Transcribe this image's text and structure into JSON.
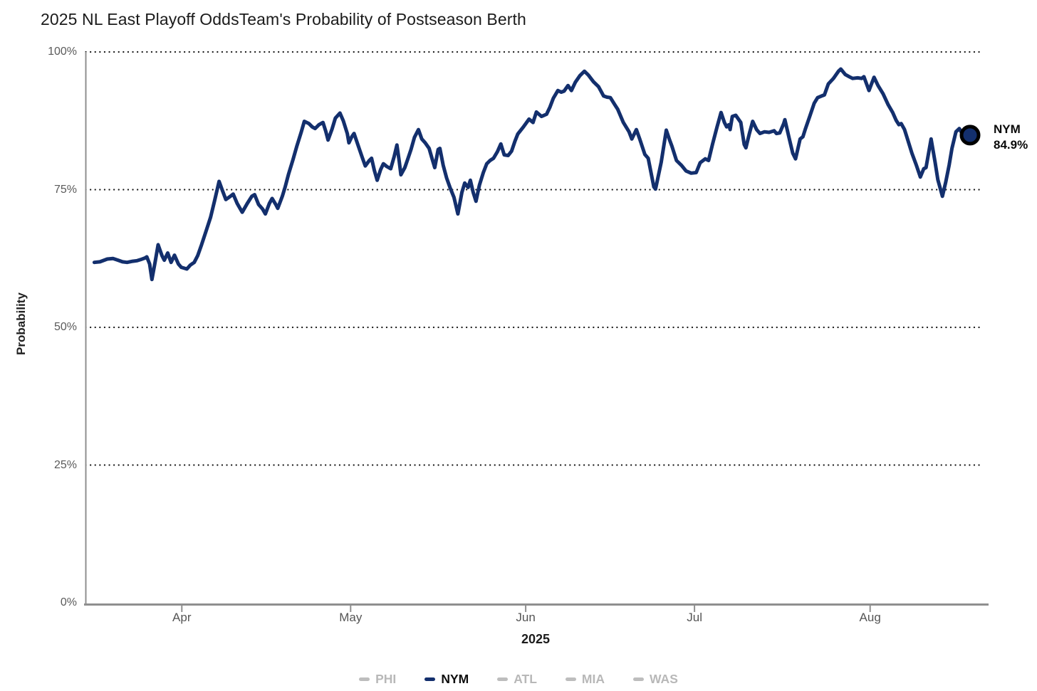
{
  "page": {
    "background": "#ffffff"
  },
  "chart_data": {
    "type": "line",
    "title": "2025 NL East Playoff Odds",
    "subtitle": "Team's Probability of Postseason Berth",
    "xlabel": "2025",
    "ylabel": "Probability",
    "x_axis": {
      "unit": "days (day 0 = mid-March 2025)",
      "domain_days": [
        -1.5,
        158
      ],
      "ticks": [
        {
          "label": "Apr",
          "day": 15.5
        },
        {
          "label": "May",
          "day": 45.4
        },
        {
          "label": "Jun",
          "day": 76.4
        },
        {
          "label": "Jul",
          "day": 106.3
        },
        {
          "label": "Aug",
          "day": 137.4
        }
      ]
    },
    "y_axis": {
      "unit": "percent",
      "lim": [
        0,
        100
      ],
      "ticks": [
        {
          "label": "0%",
          "value": 0
        },
        {
          "label": "25%",
          "value": 25
        },
        {
          "label": "50%",
          "value": 50
        },
        {
          "label": "75%",
          "value": 75
        },
        {
          "label": "100%",
          "value": 100
        }
      ],
      "grid_values": [
        25,
        50,
        75,
        100
      ]
    },
    "grid": {
      "style": "dotted",
      "color": "#161616"
    },
    "axis_color": "#8f8f8f",
    "series": [
      {
        "name": "NYM",
        "color": "#132f6d",
        "line_width": 5,
        "end_value": 84.9,
        "end_label": {
          "team": "NYM",
          "value": "84.9%"
        },
        "marker": {
          "fill": "#132f6d",
          "stroke": "#000000",
          "radius": 12,
          "stroke_width": 5
        },
        "points": [
          [
            0,
            61.8
          ],
          [
            1,
            61.9
          ],
          [
            2.3,
            62.4
          ],
          [
            3.3,
            62.5
          ],
          [
            4.2,
            62.2
          ],
          [
            5,
            61.9
          ],
          [
            5.8,
            61.8
          ],
          [
            6.8,
            62
          ],
          [
            7.6,
            62.1
          ],
          [
            8.2,
            62.3
          ],
          [
            9,
            62.6
          ],
          [
            9.3,
            62.8
          ],
          [
            9.8,
            61.5
          ],
          [
            10.2,
            58.7
          ],
          [
            10.8,
            62
          ],
          [
            11.3,
            65
          ],
          [
            12,
            63
          ],
          [
            12.4,
            62.2
          ],
          [
            13,
            63.5
          ],
          [
            13.6,
            61.8
          ],
          [
            14.2,
            63.1
          ],
          [
            14.9,
            61.5
          ],
          [
            15.4,
            60.9
          ],
          [
            16.4,
            60.6
          ],
          [
            17,
            61.3
          ],
          [
            17.7,
            61.8
          ],
          [
            18.3,
            63
          ],
          [
            19,
            65
          ],
          [
            19.8,
            67.5
          ],
          [
            20.6,
            70
          ],
          [
            21.3,
            73
          ],
          [
            22.1,
            76.5
          ],
          [
            22.7,
            74.8
          ],
          [
            23.3,
            73.2
          ],
          [
            24.1,
            73.8
          ],
          [
            24.6,
            74.2
          ],
          [
            25.3,
            72.5
          ],
          [
            26.2,
            70.9
          ],
          [
            27.1,
            72.5
          ],
          [
            27.9,
            73.8
          ],
          [
            28.4,
            74.1
          ],
          [
            29.1,
            72.3
          ],
          [
            29.8,
            71.5
          ],
          [
            30.3,
            70.6
          ],
          [
            31,
            72.5
          ],
          [
            31.5,
            73.4
          ],
          [
            32.2,
            72.2
          ],
          [
            32.5,
            71.6
          ],
          [
            33.3,
            73.8
          ],
          [
            33.8,
            75.5
          ],
          [
            34.4,
            77.8
          ],
          [
            35.2,
            80.5
          ],
          [
            35.9,
            83
          ],
          [
            36.6,
            85.3
          ],
          [
            37.2,
            87.4
          ],
          [
            38,
            87
          ],
          [
            38.6,
            86.4
          ],
          [
            39.1,
            86.1
          ],
          [
            39.8,
            86.8
          ],
          [
            40.5,
            87.2
          ],
          [
            41,
            85.6
          ],
          [
            41.4,
            84
          ],
          [
            42.1,
            86
          ],
          [
            42.7,
            88
          ],
          [
            43.5,
            88.9
          ],
          [
            44.1,
            87.5
          ],
          [
            44.8,
            85.2
          ],
          [
            45.1,
            83.5
          ],
          [
            45.6,
            84.6
          ],
          [
            46,
            85.2
          ],
          [
            46.8,
            82.8
          ],
          [
            47.4,
            81
          ],
          [
            48,
            79.3
          ],
          [
            48.7,
            80.3
          ],
          [
            49.1,
            80.7
          ],
          [
            49.6,
            78.5
          ],
          [
            50.1,
            76.7
          ],
          [
            50.7,
            78.6
          ],
          [
            51.2,
            79.7
          ],
          [
            51.8,
            79.2
          ],
          [
            52.5,
            78.8
          ],
          [
            53.1,
            81
          ],
          [
            53.6,
            83.1
          ],
          [
            54,
            80.2
          ],
          [
            54.3,
            77.7
          ],
          [
            55,
            79
          ],
          [
            55.5,
            80.5
          ],
          [
            56.1,
            82.3
          ],
          [
            56.7,
            84.5
          ],
          [
            57.4,
            85.9
          ],
          [
            58,
            84.2
          ],
          [
            58.6,
            83.5
          ],
          [
            59.3,
            82.5
          ],
          [
            59.8,
            80.7
          ],
          [
            60.3,
            79
          ],
          [
            60.9,
            82.3
          ],
          [
            61.2,
            82.5
          ],
          [
            61.8,
            79.4
          ],
          [
            62.4,
            77.1
          ],
          [
            63,
            75.4
          ],
          [
            63.7,
            73.6
          ],
          [
            64.4,
            70.6
          ],
          [
            65.1,
            74.5
          ],
          [
            65.6,
            76.2
          ],
          [
            66.2,
            75.4
          ],
          [
            66.6,
            76.7
          ],
          [
            67.1,
            74.5
          ],
          [
            67.6,
            72.9
          ],
          [
            68.2,
            75.8
          ],
          [
            68.9,
            78.1
          ],
          [
            69.5,
            79.7
          ],
          [
            70.1,
            80.3
          ],
          [
            70.7,
            80.7
          ],
          [
            71.4,
            81.9
          ],
          [
            72,
            83.3
          ],
          [
            72.6,
            81.3
          ],
          [
            73.3,
            81.2
          ],
          [
            73.9,
            82
          ],
          [
            74.5,
            83.8
          ],
          [
            75,
            85.1
          ],
          [
            76,
            86.4
          ],
          [
            77,
            87.8
          ],
          [
            77.7,
            87.2
          ],
          [
            78.3,
            89.1
          ],
          [
            79.2,
            88.3
          ],
          [
            80.1,
            88.7
          ],
          [
            80.7,
            90
          ],
          [
            81.3,
            91.6
          ],
          [
            82.1,
            93
          ],
          [
            82.7,
            92.7
          ],
          [
            83.2,
            92.9
          ],
          [
            83.9,
            93.9
          ],
          [
            84.5,
            93
          ],
          [
            85.2,
            94.5
          ],
          [
            86,
            95.7
          ],
          [
            86.8,
            96.5
          ],
          [
            87.5,
            95.8
          ],
          [
            88.4,
            94.6
          ],
          [
            89.3,
            93.7
          ],
          [
            90.2,
            92
          ],
          [
            90.8,
            91.8
          ],
          [
            91.4,
            91.7
          ],
          [
            92.2,
            90.4
          ],
          [
            92.7,
            89.6
          ],
          [
            93.7,
            87.2
          ],
          [
            94.7,
            85.5
          ],
          [
            95.2,
            84.2
          ],
          [
            96,
            85.9
          ],
          [
            96.6,
            84.2
          ],
          [
            97.5,
            81.4
          ],
          [
            98.1,
            80.7
          ],
          [
            99.1,
            75.5
          ],
          [
            99.4,
            75.1
          ],
          [
            100.4,
            80
          ],
          [
            101.3,
            85.8
          ],
          [
            101.9,
            84
          ],
          [
            102.3,
            82.9
          ],
          [
            103.1,
            80.3
          ],
          [
            104,
            79.4
          ],
          [
            104.8,
            78.4
          ],
          [
            105.7,
            78
          ],
          [
            106.6,
            78.1
          ],
          [
            107.3,
            79.9
          ],
          [
            108.2,
            80.6
          ],
          [
            108.8,
            80.3
          ],
          [
            109.5,
            83.3
          ],
          [
            110.3,
            86.4
          ],
          [
            111,
            89
          ],
          [
            111.6,
            87.2
          ],
          [
            112,
            86.4
          ],
          [
            112.4,
            86.8
          ],
          [
            112.6,
            85.9
          ],
          [
            113,
            88.3
          ],
          [
            113.6,
            88.5
          ],
          [
            114.5,
            87.2
          ],
          [
            115.1,
            83.2
          ],
          [
            115.4,
            82.6
          ],
          [
            116,
            85.1
          ],
          [
            116.6,
            87.4
          ],
          [
            117.3,
            85.9
          ],
          [
            117.9,
            85.2
          ],
          [
            118.7,
            85.5
          ],
          [
            119.5,
            85.4
          ],
          [
            120.4,
            85.7
          ],
          [
            120.8,
            85.2
          ],
          [
            121.4,
            85.3
          ],
          [
            122.1,
            87
          ],
          [
            122.3,
            87.7
          ],
          [
            123.1,
            84.2
          ],
          [
            123.7,
            81.6
          ],
          [
            124.2,
            80.6
          ],
          [
            125,
            84.2
          ],
          [
            125.5,
            84.6
          ],
          [
            125.9,
            85.9
          ],
          [
            126.7,
            88.3
          ],
          [
            127.5,
            90.7
          ],
          [
            128.1,
            91.7
          ],
          [
            128.8,
            92
          ],
          [
            129.3,
            92.2
          ],
          [
            130,
            94.2
          ],
          [
            130.9,
            95.2
          ],
          [
            131.8,
            96.5
          ],
          [
            132.2,
            96.9
          ],
          [
            133,
            95.9
          ],
          [
            133.7,
            95.5
          ],
          [
            134.3,
            95.2
          ],
          [
            135.2,
            95.3
          ],
          [
            135.9,
            95.2
          ],
          [
            136.3,
            95.5
          ],
          [
            137.2,
            93
          ],
          [
            138.1,
            95.4
          ],
          [
            138.8,
            93.9
          ],
          [
            139.7,
            92.4
          ],
          [
            140.6,
            90.4
          ],
          [
            141.4,
            89
          ],
          [
            142,
            87.6
          ],
          [
            142.5,
            86.8
          ],
          [
            142.9,
            87
          ],
          [
            143.5,
            85.9
          ],
          [
            143.9,
            84.6
          ],
          [
            144.8,
            81.6
          ],
          [
            145.6,
            79.4
          ],
          [
            146.3,
            77.3
          ],
          [
            146.9,
            78.8
          ],
          [
            147.3,
            79
          ],
          [
            148.2,
            84.2
          ],
          [
            148.9,
            80
          ],
          [
            149.4,
            76.8
          ],
          [
            150.2,
            73.8
          ],
          [
            150.8,
            76.4
          ],
          [
            151.4,
            79.5
          ],
          [
            151.9,
            82.5
          ],
          [
            152.6,
            85.5
          ],
          [
            153.2,
            86.1
          ],
          [
            153.8,
            85
          ],
          [
            154.5,
            84.6
          ],
          [
            155.1,
            84.9
          ]
        ]
      }
    ],
    "legend": {
      "position": "bottom",
      "items": [
        {
          "label": "PHI",
          "swatch_color": "#bdbdbd",
          "label_color": "#b8b8b8",
          "active": false
        },
        {
          "label": "NYM",
          "swatch_color": "#132f6d",
          "label_color": "#0d0d0d",
          "active": true
        },
        {
          "label": "ATL",
          "swatch_color": "#bdbdbd",
          "label_color": "#b8b8b8",
          "active": false
        },
        {
          "label": "MIA",
          "swatch_color": "#bdbdbd",
          "label_color": "#b8b8b8",
          "active": false
        },
        {
          "label": "WAS",
          "swatch_color": "#bdbdbd",
          "label_color": "#b8b8b8",
          "active": false
        }
      ]
    }
  }
}
